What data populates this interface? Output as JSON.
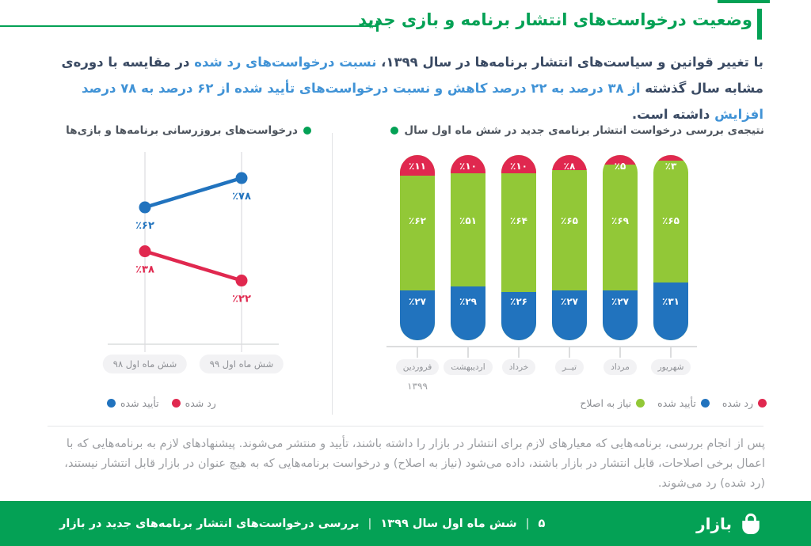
{
  "colors": {
    "green": "#04a155",
    "lime": "#92c837",
    "blue": "#2173be",
    "red": "#e0284f",
    "dark": "#3a4a63",
    "textblue": "#4193d6"
  },
  "header": {
    "title": "وضعیت درخواست‌های انتشار برنامه و بازی جدید"
  },
  "intro": {
    "d1": "با تغییر قوانین و سیاست‌های انتشار برنامه‌ها در سال ۱۳۹۹، ",
    "b1": "نسبت درخواست‌های رد شده",
    "d2": " در مقایسه با دوره‌ی مشابه سال گذشته ",
    "b2": "از ۳۸ درصد به ۲۲ درصد کاهش و نسبت درخواست‌های تأیید شده از ۶۲ درصد به ۷۸ درصد افزایش",
    "d3": " داشته است."
  },
  "chart_data": [
    {
      "type": "line",
      "title": "درخواست‌های بروزرسانی برنامه‌ها و بازی‌ها",
      "categories": [
        "شش ماه اول ۹۸",
        "شش ماه اول ۹۹"
      ],
      "series": [
        {
          "name": "تأیید شده",
          "color": "blue",
          "values": [
            62,
            78
          ],
          "labels": [
            "٪۶۲",
            "٪۷۸"
          ]
        },
        {
          "name": "رد شده",
          "color": "red",
          "values": [
            38,
            22
          ],
          "labels": [
            "٪۳۸",
            "٪۲۲"
          ]
        }
      ],
      "ylim": [
        0,
        100
      ],
      "grid": "vertical-category-lines",
      "legend": {
        "position": "bottom",
        "dot_side": "left",
        "items": [
          {
            "label": "رد شده",
            "color": "red"
          },
          {
            "label": "تأیید شده",
            "color": "blue"
          }
        ]
      }
    },
    {
      "type": "bar",
      "stacked": true,
      "title": "نتیجه‌ی بررسی درخواست انتشار برنامه‌ی جدید در شش ماه اول سال",
      "categories": [
        "فروردین",
        "اردیبهشت",
        "خرداد",
        "تیــر",
        "مرداد",
        "شهریور"
      ],
      "year_label": "۱۳۹۹",
      "ylim": [
        0,
        100
      ],
      "series": [
        {
          "name": "رد شده",
          "color": "red",
          "values": [
            11,
            10,
            10,
            8,
            5,
            3
          ],
          "labels": [
            "٪۱۱",
            "٪۱۰",
            "٪۱۰",
            "٪۸",
            "٪۵",
            "٪۳"
          ]
        },
        {
          "name": "نیاز به اصلاح",
          "color": "lime",
          "values": [
            62,
            51,
            64,
            65,
            69,
            65
          ],
          "labels": [
            "٪۶۲",
            "٪۵۱",
            "٪۶۴",
            "٪۶۵",
            "٪۶۹",
            "٪۶۵"
          ]
        },
        {
          "name": "تأیید شده",
          "color": "blue",
          "values": [
            27,
            29,
            26,
            27,
            27,
            31
          ],
          "labels": [
            "٪۲۷",
            "٪۲۹",
            "٪۲۶",
            "٪۲۷",
            "٪۲۷",
            "٪۳۱"
          ]
        }
      ],
      "legend": {
        "position": "bottom-left",
        "dot_side": "right",
        "items": [
          {
            "label": "رد شده",
            "color": "red"
          },
          {
            "label": "تأیید شده",
            "color": "blue"
          },
          {
            "label": "نیاز به اصلاح",
            "color": "lime"
          }
        ]
      }
    }
  ],
  "outro": {
    "text": "پس از انجام بررسی، برنامه‌هایی که معیارهای لازم برای انتشار در بازار را داشته باشند، تأیید و منتشر می‌شوند. پیشنهادهای لازم به برنامه‌هایی که با اعمال برخی اصلاحات، قابل انتشار در بازار باشند، داده می‌شود (نیاز به اصلاح) و درخواست برنامه‌هایی که به هیچ عنوان در بازار قابل انتشار نیستند، (رد شده) رد می‌شوند."
  },
  "footer": {
    "brand": "بازار",
    "page_number": "۵",
    "separator": "|",
    "period": "شش ماه اول سال ۱۳۹۹",
    "report_title": "بررسی درخواست‌های انتشار برنامه‌های جدید در بازار"
  }
}
